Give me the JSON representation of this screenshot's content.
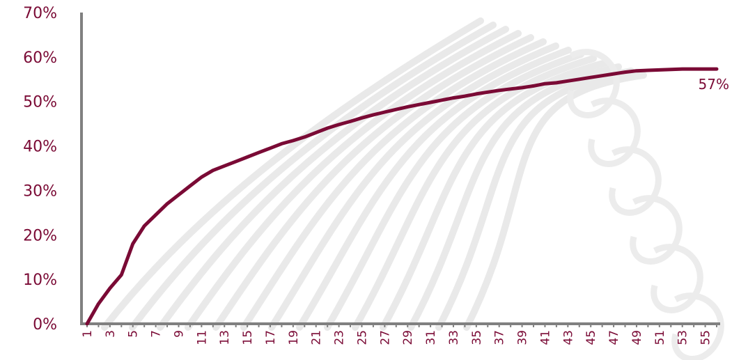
{
  "chart_data": {
    "type": "line",
    "x": [
      1,
      2,
      3,
      4,
      5,
      6,
      7,
      8,
      9,
      10,
      11,
      12,
      13,
      14,
      15,
      16,
      17,
      18,
      19,
      20,
      21,
      22,
      23,
      24,
      25,
      26,
      27,
      28,
      29,
      30,
      31,
      32,
      33,
      34,
      35,
      36,
      37,
      38,
      39,
      40,
      41,
      42,
      43,
      44,
      45,
      46,
      47,
      48,
      49,
      50,
      51,
      52,
      53,
      54,
      55,
      56
    ],
    "x_tick_labels": [
      "1",
      "3",
      "5",
      "7",
      "9",
      "11",
      "13",
      "15",
      "17",
      "19",
      "21",
      "23",
      "25",
      "27",
      "29",
      "31",
      "33",
      "35",
      "37",
      "39",
      "41",
      "43",
      "45",
      "47",
      "49",
      "51",
      "53",
      "55"
    ],
    "series": [
      {
        "values": [
          0,
          4.5,
          8,
          11,
          18,
          22,
          24.5,
          27,
          29,
          31,
          33,
          34.5,
          35.5,
          36.5,
          37.5,
          38.5,
          39.5,
          40.5,
          41.2,
          42,
          43,
          44,
          44.8,
          45.5,
          46.3,
          47,
          47.6,
          48.2,
          48.8,
          49.3,
          49.8,
          50.3,
          50.8,
          51.2,
          51.7,
          52.1,
          52.5,
          52.8,
          53.1,
          53.5,
          54,
          54.2,
          54.6,
          55,
          55.4,
          55.8,
          56.2,
          56.6,
          56.9,
          57,
          57.1,
          57.2,
          57.3,
          57.3,
          57.3,
          57.3
        ],
        "color": "#7a0a35"
      }
    ],
    "end_label": "57%",
    "ylim": [
      0,
      70
    ],
    "y_tick_labels": [
      "0%",
      "10%",
      "20%",
      "30%",
      "40%",
      "50%",
      "60%",
      "70%"
    ],
    "y_ticks": [
      0,
      10,
      20,
      30,
      40,
      50,
      60,
      70
    ],
    "grid": false,
    "colors": {
      "series": "#7a0a35",
      "axis": "#808080",
      "labels": "#7a0a35"
    }
  }
}
